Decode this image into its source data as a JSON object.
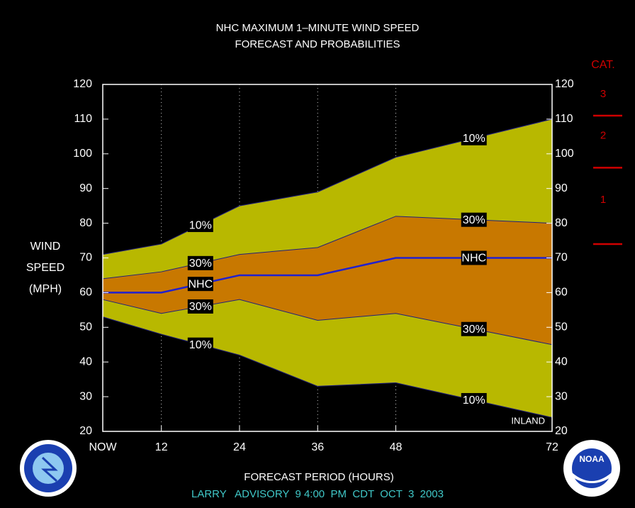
{
  "chart_data": {
    "type": "band",
    "title": "NHC MAXIMUM 1–MINUTE WIND SPEED",
    "subtitle": "FORECAST AND PROBABILITIES",
    "xlabel": "FORECAST PERIOD (HOURS)",
    "ylabel": [
      "WIND",
      "SPEED",
      "(MPH)"
    ],
    "footer": "LARRY   ADVISORY  9 4:00  PM  CDT  OCT  3  2003",
    "annotation": "INLAND",
    "x": [
      3,
      12,
      24,
      36,
      48,
      72
    ],
    "xlim": [
      3,
      72
    ],
    "xticks": [
      {
        "value": 3,
        "label": "NOW"
      },
      12,
      24,
      36,
      48,
      72
    ],
    "ylim": [
      20,
      120
    ],
    "yticks": [
      20,
      30,
      40,
      50,
      60,
      70,
      80,
      90,
      100,
      110,
      120
    ],
    "series": [
      {
        "name": "10%",
        "color": "#b8b800",
        "values": [
          71,
          74,
          85,
          89,
          99,
          110
        ]
      },
      {
        "name": "30%",
        "color": "#c87800",
        "values": [
          64,
          66,
          71,
          73,
          82,
          80
        ]
      },
      {
        "name": "NHC",
        "color": "#2020d0",
        "values": [
          60,
          60,
          65,
          65,
          70,
          70
        ]
      },
      {
        "name": "30%",
        "color": "#c87800",
        "values": [
          58,
          54,
          58,
          52,
          54,
          45
        ]
      },
      {
        "name": "10%",
        "color": "#b8b800",
        "values": [
          53,
          48,
          42,
          33,
          34,
          24
        ]
      }
    ],
    "category_scale": {
      "title": "CAT.",
      "labels": [
        "1",
        "2",
        "3"
      ],
      "thresholds": [
        74,
        96,
        111
      ],
      "color": "#d00000"
    },
    "logo_text": "NOAA"
  }
}
